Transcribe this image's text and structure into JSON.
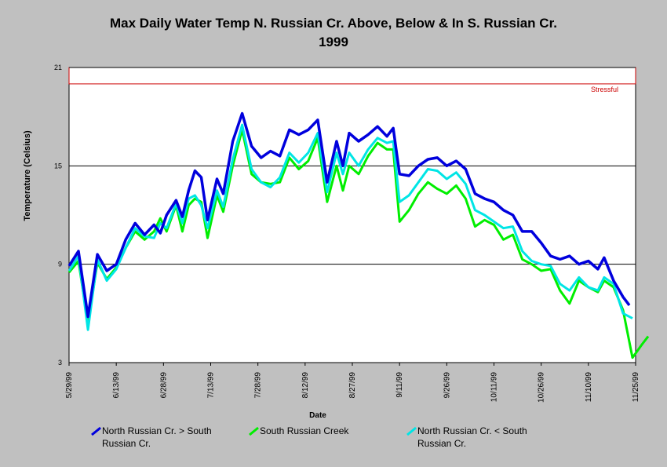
{
  "chart_data": {
    "type": "line",
    "title": "Max Daily Water Temp N. Russian Cr. Above, Below & In S. Russian Cr.",
    "subtitle": "1999",
    "xlabel": "Date",
    "ylabel": "Temperature (Celsius)",
    "x_tick_labels": [
      "5/29/99",
      "6/13/99",
      "6/28/99",
      "7/13/99",
      "7/28/99",
      "8/12/99",
      "8/27/99",
      "9/11/99",
      "9/26/99",
      "10/11/99",
      "10/26/99",
      "11/10/99",
      "11/25/99"
    ],
    "y_ticks": [
      3,
      9,
      15,
      21
    ],
    "xlim": [
      "1999-05-29",
      "1999-11-25"
    ],
    "ylim": [
      3,
      21
    ],
    "grid": "horizontal at 9, 15, 21",
    "threshold_band": {
      "label": "Stressful",
      "from": 20,
      "to": 21,
      "color": "#cc0000"
    },
    "series": [
      {
        "name": "North Russian Cr. > South Russian Cr.",
        "color": "#0000dd",
        "points": [
          [
            "1999-05-29",
            8.9
          ],
          [
            "1999-06-01",
            9.8
          ],
          [
            "1999-06-04",
            5.8
          ],
          [
            "1999-06-07",
            9.6
          ],
          [
            "1999-06-10",
            8.6
          ],
          [
            "1999-06-13",
            9.0
          ],
          [
            "1999-06-16",
            10.5
          ],
          [
            "1999-06-19",
            11.5
          ],
          [
            "1999-06-22",
            10.8
          ],
          [
            "1999-06-25",
            11.4
          ],
          [
            "1999-06-27",
            10.9
          ],
          [
            "1999-06-29",
            12.0
          ],
          [
            "1999-07-02",
            12.9
          ],
          [
            "1999-07-04",
            11.9
          ],
          [
            "1999-07-06",
            13.5
          ],
          [
            "1999-07-08",
            14.7
          ],
          [
            "1999-07-10",
            14.3
          ],
          [
            "1999-07-12",
            11.7
          ],
          [
            "1999-07-15",
            14.2
          ],
          [
            "1999-07-17",
            13.3
          ],
          [
            "1999-07-20",
            16.5
          ],
          [
            "1999-07-23",
            18.2
          ],
          [
            "1999-07-26",
            16.2
          ],
          [
            "1999-07-29",
            15.5
          ],
          [
            "1999-08-01",
            15.9
          ],
          [
            "1999-08-04",
            15.6
          ],
          [
            "1999-08-07",
            17.2
          ],
          [
            "1999-08-10",
            16.9
          ],
          [
            "1999-08-13",
            17.2
          ],
          [
            "1999-08-16",
            17.8
          ],
          [
            "1999-08-19",
            14.0
          ],
          [
            "1999-08-22",
            16.5
          ],
          [
            "1999-08-24",
            15.0
          ],
          [
            "1999-08-26",
            17.0
          ],
          [
            "1999-08-29",
            16.5
          ],
          [
            "1999-09-01",
            16.9
          ],
          [
            "1999-09-04",
            17.4
          ],
          [
            "1999-09-07",
            16.8
          ],
          [
            "1999-09-09",
            17.3
          ],
          [
            "1999-09-11",
            14.5
          ],
          [
            "1999-09-14",
            14.4
          ],
          [
            "1999-09-17",
            15.0
          ],
          [
            "1999-09-20",
            15.4
          ],
          [
            "1999-09-23",
            15.5
          ],
          [
            "1999-09-26",
            15.0
          ],
          [
            "1999-09-29",
            15.3
          ],
          [
            "1999-10-02",
            14.8
          ],
          [
            "1999-10-05",
            13.3
          ],
          [
            "1999-10-08",
            13.0
          ],
          [
            "1999-10-11",
            12.8
          ],
          [
            "1999-10-14",
            12.3
          ],
          [
            "1999-10-17",
            12.0
          ],
          [
            "1999-10-20",
            11.0
          ],
          [
            "1999-10-23",
            11.0
          ],
          [
            "1999-10-26",
            10.3
          ],
          [
            "1999-10-29",
            9.5
          ],
          [
            "1999-11-01",
            9.3
          ],
          [
            "1999-11-04",
            9.5
          ],
          [
            "1999-11-07",
            9.0
          ],
          [
            "1999-11-10",
            9.2
          ],
          [
            "1999-11-13",
            8.7
          ],
          [
            "1999-11-15",
            9.4
          ],
          [
            "1999-11-18",
            8.0
          ],
          [
            "1999-11-21",
            7.0
          ],
          [
            "1999-11-23",
            6.5
          ]
        ]
      },
      {
        "name": "South Russian Creek",
        "color": "#00ee00",
        "points": [
          [
            "1999-05-29",
            8.5
          ],
          [
            "1999-06-01",
            9.2
          ],
          [
            "1999-06-04",
            5.4
          ],
          [
            "1999-06-07",
            9.1
          ],
          [
            "1999-06-10",
            8.1
          ],
          [
            "1999-06-13",
            8.8
          ],
          [
            "1999-06-16",
            10.0
          ],
          [
            "1999-06-19",
            11.0
          ],
          [
            "1999-06-22",
            10.5
          ],
          [
            "1999-06-25",
            11.0
          ],
          [
            "1999-06-27",
            11.8
          ],
          [
            "1999-06-29",
            11.0
          ],
          [
            "1999-07-02",
            12.6
          ],
          [
            "1999-07-04",
            11.0
          ],
          [
            "1999-07-06",
            12.6
          ],
          [
            "1999-07-08",
            13.0
          ],
          [
            "1999-07-10",
            12.8
          ],
          [
            "1999-07-12",
            10.6
          ],
          [
            "1999-07-15",
            13.2
          ],
          [
            "1999-07-17",
            12.2
          ],
          [
            "1999-07-20",
            15.0
          ],
          [
            "1999-07-23",
            17.2
          ],
          [
            "1999-07-26",
            14.5
          ],
          [
            "1999-07-29",
            14.0
          ],
          [
            "1999-08-01",
            13.9
          ],
          [
            "1999-08-04",
            14.0
          ],
          [
            "1999-08-07",
            15.5
          ],
          [
            "1999-08-10",
            14.8
          ],
          [
            "1999-08-13",
            15.3
          ],
          [
            "1999-08-16",
            16.7
          ],
          [
            "1999-08-19",
            12.8
          ],
          [
            "1999-08-22",
            15.0
          ],
          [
            "1999-08-24",
            13.5
          ],
          [
            "1999-08-26",
            15.0
          ],
          [
            "1999-08-29",
            14.5
          ],
          [
            "1999-09-01",
            15.6
          ],
          [
            "1999-09-04",
            16.4
          ],
          [
            "1999-09-07",
            16.0
          ],
          [
            "1999-09-09",
            16.0
          ],
          [
            "1999-09-11",
            11.6
          ],
          [
            "1999-09-14",
            12.3
          ],
          [
            "1999-09-17",
            13.3
          ],
          [
            "1999-09-20",
            14.0
          ],
          [
            "1999-09-23",
            13.6
          ],
          [
            "1999-09-26",
            13.3
          ],
          [
            "1999-09-29",
            13.8
          ],
          [
            "1999-10-02",
            13.0
          ],
          [
            "1999-10-05",
            11.3
          ],
          [
            "1999-10-08",
            11.7
          ],
          [
            "1999-10-11",
            11.4
          ],
          [
            "1999-10-14",
            10.5
          ],
          [
            "1999-10-17",
            10.8
          ],
          [
            "1999-10-20",
            9.3
          ],
          [
            "1999-10-23",
            9.0
          ],
          [
            "1999-10-26",
            8.6
          ],
          [
            "1999-10-29",
            8.7
          ],
          [
            "1999-11-01",
            7.4
          ],
          [
            "1999-11-04",
            6.6
          ],
          [
            "1999-11-07",
            8.0
          ],
          [
            "1999-11-10",
            7.6
          ],
          [
            "1999-11-13",
            7.3
          ],
          [
            "1999-11-15",
            8.0
          ],
          [
            "1999-11-18",
            7.6
          ],
          [
            "1999-11-21",
            6.2
          ],
          [
            "1999-11-24",
            3.3
          ],
          [
            "1999-11-27",
            4.1
          ],
          [
            "1999-11-29",
            4.6
          ]
        ]
      },
      {
        "name": "North Russian Cr. < South Russian Cr.",
        "color": "#00e5e5",
        "points": [
          [
            "1999-05-29",
            8.6
          ],
          [
            "1999-06-01",
            9.5
          ],
          [
            "1999-06-04",
            5.0
          ],
          [
            "1999-06-07",
            9.3
          ],
          [
            "1999-06-10",
            8.0
          ],
          [
            "1999-06-13",
            8.7
          ],
          [
            "1999-06-16",
            10.0
          ],
          [
            "1999-06-19",
            11.2
          ],
          [
            "1999-06-22",
            10.7
          ],
          [
            "1999-06-25",
            10.6
          ],
          [
            "1999-06-27",
            11.5
          ],
          [
            "1999-06-29",
            11.2
          ],
          [
            "1999-07-02",
            12.7
          ],
          [
            "1999-07-04",
            11.5
          ],
          [
            "1999-07-06",
            13.0
          ],
          [
            "1999-07-08",
            13.2
          ],
          [
            "1999-07-10",
            12.6
          ],
          [
            "1999-07-12",
            11.2
          ],
          [
            "1999-07-15",
            13.5
          ],
          [
            "1999-07-17",
            12.5
          ],
          [
            "1999-07-20",
            15.4
          ],
          [
            "1999-07-23",
            17.5
          ],
          [
            "1999-07-26",
            14.8
          ],
          [
            "1999-07-29",
            14.0
          ],
          [
            "1999-08-01",
            13.7
          ],
          [
            "1999-08-04",
            14.3
          ],
          [
            "1999-08-07",
            15.8
          ],
          [
            "1999-08-10",
            15.2
          ],
          [
            "1999-08-13",
            15.8
          ],
          [
            "1999-08-16",
            17.0
          ],
          [
            "1999-08-19",
            13.4
          ],
          [
            "1999-08-22",
            15.8
          ],
          [
            "1999-08-24",
            14.5
          ],
          [
            "1999-08-26",
            15.8
          ],
          [
            "1999-08-29",
            15.0
          ],
          [
            "1999-09-01",
            16.0
          ],
          [
            "1999-09-04",
            16.7
          ],
          [
            "1999-09-07",
            16.4
          ],
          [
            "1999-09-09",
            16.5
          ],
          [
            "1999-09-11",
            12.8
          ],
          [
            "1999-09-14",
            13.2
          ],
          [
            "1999-09-17",
            14.0
          ],
          [
            "1999-09-20",
            14.8
          ],
          [
            "1999-09-23",
            14.7
          ],
          [
            "1999-09-26",
            14.2
          ],
          [
            "1999-09-29",
            14.6
          ],
          [
            "1999-10-02",
            13.9
          ],
          [
            "1999-10-05",
            12.3
          ],
          [
            "1999-10-08",
            12.0
          ],
          [
            "1999-10-11",
            11.6
          ],
          [
            "1999-10-14",
            11.2
          ],
          [
            "1999-10-17",
            11.3
          ],
          [
            "1999-10-20",
            9.8
          ],
          [
            "1999-10-23",
            9.2
          ],
          [
            "1999-10-26",
            9.0
          ],
          [
            "1999-10-29",
            8.9
          ],
          [
            "1999-11-01",
            7.8
          ],
          [
            "1999-11-04",
            7.4
          ],
          [
            "1999-11-07",
            8.2
          ],
          [
            "1999-11-10",
            7.6
          ],
          [
            "1999-11-13",
            7.4
          ],
          [
            "1999-11-15",
            8.2
          ],
          [
            "1999-11-18",
            7.8
          ],
          [
            "1999-11-21",
            6.0
          ],
          [
            "1999-11-24",
            5.7
          ]
        ]
      }
    ],
    "legend_position": "bottom"
  }
}
